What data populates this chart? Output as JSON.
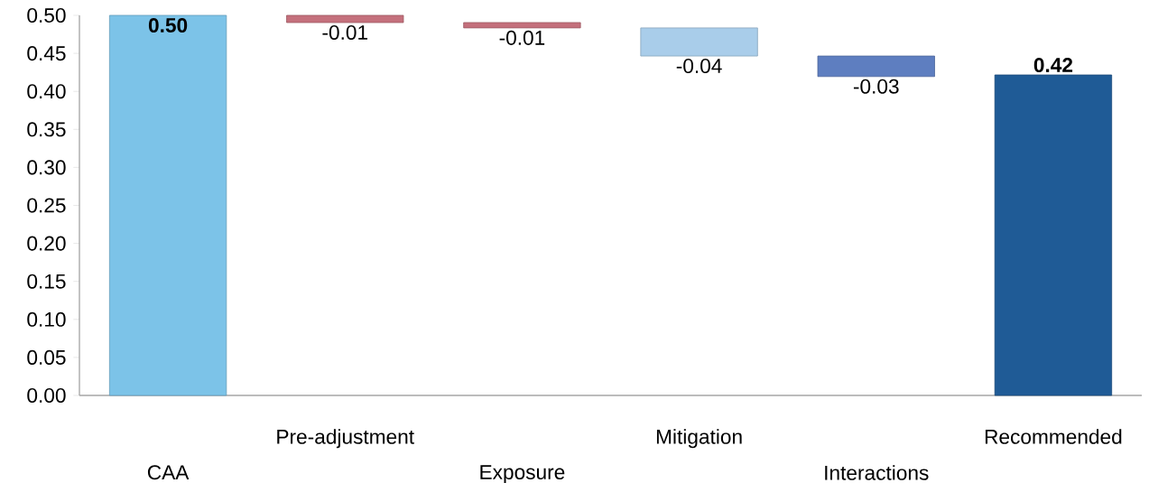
{
  "chart_data": {
    "type": "bar",
    "categories": [
      "CAA",
      "Pre-adjustment",
      "Exposure",
      "Mitigation",
      "Interactions",
      "Recommended"
    ],
    "values": [
      0.5,
      -0.0095,
      -0.007,
      -0.037,
      -0.027,
      0.4216
    ],
    "base": [
      0,
      0.5,
      0.4905,
      0.4835,
      0.4465,
      0
    ],
    "value_labels": [
      "0.50",
      "-0.01",
      "-0.01",
      "-0.04",
      "-0.03",
      "0.42"
    ],
    "colors": [
      "#7cc3e8",
      "#c4707c",
      "#c4707c",
      "#a9cdea",
      "#5e7ec0",
      "#1f5b96"
    ],
    "ylim": [
      0,
      0.5
    ],
    "yticks": [
      {
        "value": 0,
        "label": "0.00"
      },
      {
        "value": 0.05,
        "label": "0.05"
      },
      {
        "value": 0.1,
        "label": "0.10"
      },
      {
        "value": 0.15,
        "label": "0.15"
      },
      {
        "value": 0.2,
        "label": "0.20"
      },
      {
        "value": 0.25,
        "label": "0.25"
      },
      {
        "value": 0.3,
        "label": "0.30"
      },
      {
        "value": 0.35,
        "label": "0.35"
      },
      {
        "value": 0.4,
        "label": "0.40"
      },
      {
        "value": 0.45,
        "label": "0.45"
      },
      {
        "value": 0.5,
        "label": "0.50"
      }
    ],
    "grid": false
  }
}
